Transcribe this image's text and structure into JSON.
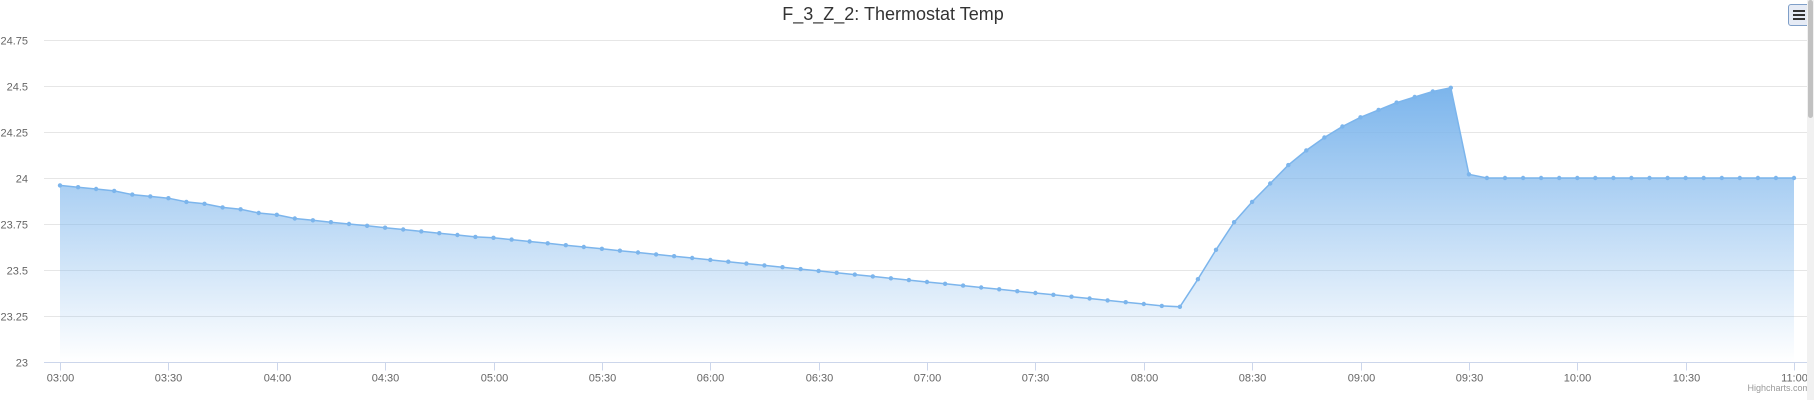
{
  "chart_data": {
    "type": "area",
    "title": "F_3_Z_2: Thermostat Temp",
    "xlabel": "",
    "ylabel": "",
    "x_ticks": [
      "03:00",
      "03:30",
      "04:00",
      "04:30",
      "05:00",
      "05:30",
      "06:00",
      "06:30",
      "07:00",
      "07:30",
      "08:00",
      "08:30",
      "09:00",
      "09:30",
      "10:00",
      "10:30",
      "11:00"
    ],
    "y_ticks": [
      "23",
      "23.25",
      "23.5",
      "23.75",
      "24",
      "24.25",
      "24.5",
      "24.75"
    ],
    "ylim": [
      23,
      24.75
    ],
    "xlim": [
      "03:00",
      "11:00"
    ],
    "grid": true,
    "legend": "none",
    "color": "#7cb5ec",
    "series": [
      {
        "x": [
          "03:00",
          "03:05",
          "03:10",
          "03:15",
          "03:20",
          "03:25",
          "03:30",
          "03:35",
          "03:40",
          "03:45",
          "03:50",
          "03:55",
          "04:00",
          "04:05",
          "04:10",
          "04:15",
          "04:20",
          "04:25",
          "04:30",
          "04:35",
          "04:40",
          "04:45",
          "04:50",
          "04:55",
          "05:00",
          "05:05",
          "05:10",
          "05:15",
          "05:20",
          "05:25",
          "05:30",
          "05:35",
          "05:40",
          "05:45",
          "05:50",
          "05:55",
          "06:00",
          "06:05",
          "06:10",
          "06:15",
          "06:20",
          "06:25",
          "06:30",
          "06:35",
          "06:40",
          "06:45",
          "06:50",
          "06:55",
          "07:00",
          "07:05",
          "07:10",
          "07:15",
          "07:20",
          "07:25",
          "07:30",
          "07:35",
          "07:40",
          "07:45",
          "07:50",
          "07:55",
          "08:00",
          "08:05",
          "08:10",
          "08:15",
          "08:20",
          "08:25",
          "08:30",
          "08:35",
          "08:40",
          "08:45",
          "08:50",
          "08:55",
          "09:00",
          "09:05",
          "09:10",
          "09:15",
          "09:20",
          "09:25",
          "09:30",
          "09:35",
          "09:40",
          "09:45",
          "09:50",
          "09:55",
          "10:00",
          "10:05",
          "10:10",
          "10:15",
          "10:20",
          "10:25",
          "10:30",
          "10:35",
          "10:40",
          "10:45",
          "10:50",
          "10:55",
          "11:00"
        ],
        "values": [
          23.96,
          23.95,
          23.94,
          23.93,
          23.91,
          23.9,
          23.89,
          23.87,
          23.86,
          23.84,
          23.83,
          23.81,
          23.8,
          23.78,
          23.77,
          23.76,
          23.75,
          23.74,
          23.73,
          23.72,
          23.71,
          23.7,
          23.69,
          23.68,
          23.675,
          23.665,
          23.655,
          23.645,
          23.635,
          23.625,
          23.615,
          23.605,
          23.595,
          23.585,
          23.575,
          23.565,
          23.555,
          23.545,
          23.535,
          23.525,
          23.515,
          23.505,
          23.495,
          23.485,
          23.475,
          23.465,
          23.455,
          23.445,
          23.435,
          23.425,
          23.415,
          23.405,
          23.395,
          23.385,
          23.375,
          23.365,
          23.355,
          23.345,
          23.335,
          23.325,
          23.315,
          23.305,
          23.3,
          23.45,
          23.61,
          23.76,
          23.87,
          23.97,
          24.07,
          24.15,
          24.22,
          24.28,
          24.33,
          24.37,
          24.41,
          24.44,
          24.47,
          24.49,
          24.02,
          24.0,
          24.0,
          24.0,
          24.0,
          24.0,
          24.0,
          24.0,
          24.0,
          24.0,
          24.0,
          24.0,
          24.0,
          24.0,
          24.0,
          24.0,
          24.0,
          24.0,
          24.0
        ]
      }
    ]
  },
  "credits": "Highcharts.com",
  "menu_icon": "hamburger-menu-icon"
}
